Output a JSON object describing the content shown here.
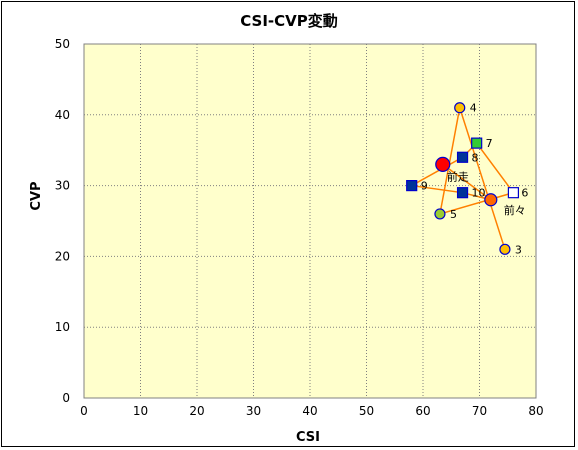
{
  "chart_data": {
    "type": "scatter",
    "title": "CSI-CVP変動",
    "xlabel": "CSI",
    "ylabel": "CVP",
    "xlim": [
      0,
      80
    ],
    "ylim": [
      0,
      50
    ],
    "x_ticks": [
      0,
      10,
      20,
      30,
      40,
      50,
      60,
      70,
      80
    ],
    "y_ticks": [
      0,
      10,
      20,
      30,
      40,
      50
    ],
    "grid": true,
    "legend": "none",
    "colors": {
      "plot_bg": "#ffffcc",
      "line": "#ff8000",
      "circle_gold": "#ffc000",
      "circle_green": "#99cc33",
      "circle_red": "#ff0000",
      "circle_orange": "#ff6600",
      "square_navy": "#003399",
      "square_green": "#33cc33",
      "marker_edge": "#0000cc"
    },
    "points": [
      {
        "label": "3",
        "x": 74.5,
        "y": 21,
        "marker": "circle",
        "fill": "#ffc000"
      },
      {
        "label": "4",
        "x": 66.5,
        "y": 41,
        "marker": "circle",
        "fill": "#ffc000"
      },
      {
        "label": "5",
        "x": 63.0,
        "y": 26,
        "marker": "circle",
        "fill": "#99cc33"
      },
      {
        "label": "6",
        "x": 76.0,
        "y": 29,
        "marker": "square",
        "fill": "#ffffff"
      },
      {
        "label": "7",
        "x": 69.5,
        "y": 36,
        "marker": "square",
        "fill": "#33cc33"
      },
      {
        "label": "8",
        "x": 67.0,
        "y": 34,
        "marker": "square",
        "fill": "#003399"
      },
      {
        "label": "9",
        "x": 58.0,
        "y": 30,
        "marker": "square",
        "fill": "#003399"
      },
      {
        "label": "10",
        "x": 67.0,
        "y": 29,
        "marker": "square",
        "fill": "#003399"
      },
      {
        "label": "前走",
        "x": 63.5,
        "y": 33,
        "marker": "circle-large",
        "fill": "#ff0000"
      },
      {
        "label": "前々",
        "x": 72.0,
        "y": 28,
        "marker": "circle-medium",
        "fill": "#ff6600"
      }
    ],
    "path_order": [
      "3",
      "4",
      "5",
      "6",
      "7",
      "8",
      "9",
      "10",
      "前々",
      "前走"
    ]
  }
}
